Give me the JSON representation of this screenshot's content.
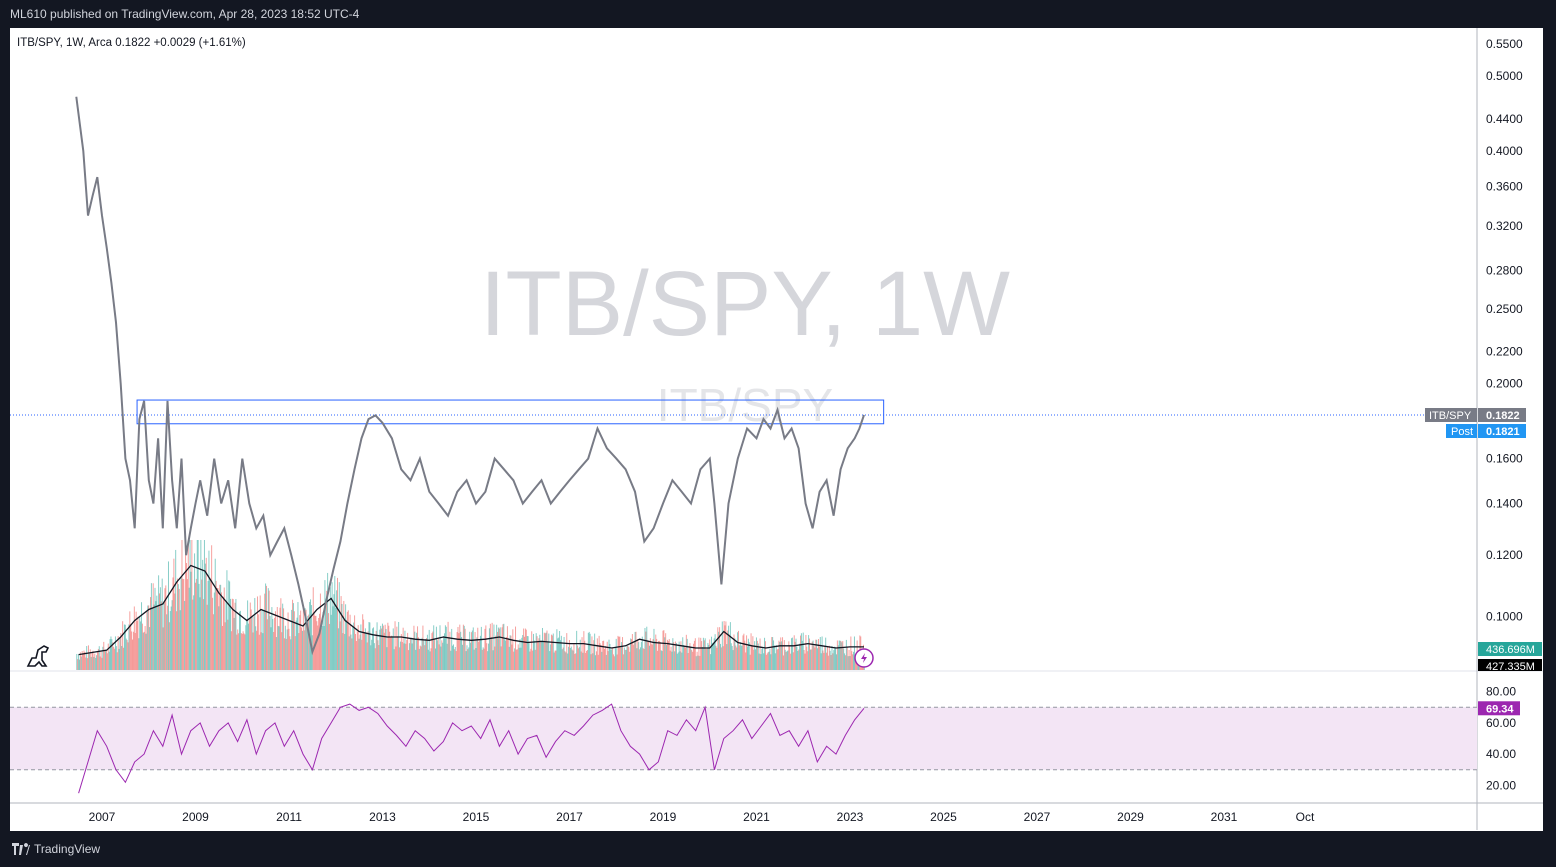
{
  "header": {
    "published": "ML610 published on TradingView.com, Apr 28, 2023 18:52 UTC-4"
  },
  "legend": {
    "symbol": "ITB/SPY, 1W, Arca",
    "last": "0.1822",
    "change": "+0.0029 (+1.61%)"
  },
  "watermark": {
    "main": "ITB/SPY, 1W",
    "secondary": "ITB/SPY"
  },
  "footer": {
    "brand": "TradingView"
  },
  "chart_data": {
    "type": "line",
    "scale": "log",
    "x_axis_labels": [
      "2007",
      "2009",
      "2011",
      "2013",
      "2015",
      "2017",
      "2019",
      "2021",
      "2023",
      "2025",
      "2027",
      "2029",
      "2031",
      "Oct"
    ],
    "price_axis_labels": [
      "0.5500",
      "0.5000",
      "0.4400",
      "0.4000",
      "0.3600",
      "0.3200",
      "0.2800",
      "0.2500",
      "0.2200",
      "0.2000",
      "0.1600",
      "0.1400",
      "0.1200",
      "0.1000",
      "0.0900"
    ],
    "price_ylim": [
      0.085,
      0.56
    ],
    "price_series": {
      "name": "ITB/SPY",
      "x": [
        2006.45,
        2006.6,
        2006.7,
        2006.8,
        2006.9,
        2007.0,
        2007.1,
        2007.2,
        2007.3,
        2007.4,
        2007.5,
        2007.6,
        2007.7,
        2007.8,
        2007.9,
        2008.0,
        2008.1,
        2008.2,
        2008.3,
        2008.4,
        2008.5,
        2008.6,
        2008.7,
        2008.8,
        2008.9,
        2009.0,
        2009.1,
        2009.25,
        2009.4,
        2009.55,
        2009.7,
        2009.85,
        2010.0,
        2010.15,
        2010.3,
        2010.45,
        2010.6,
        2010.75,
        2010.9,
        2011.05,
        2011.2,
        2011.35,
        2011.5,
        2011.65,
        2011.8,
        2011.95,
        2012.1,
        2012.25,
        2012.4,
        2012.55,
        2012.7,
        2012.85,
        2013.0,
        2013.2,
        2013.4,
        2013.6,
        2013.8,
        2014.0,
        2014.2,
        2014.4,
        2014.6,
        2014.8,
        2015.0,
        2015.2,
        2015.4,
        2015.6,
        2015.8,
        2016.0,
        2016.2,
        2016.4,
        2016.6,
        2016.8,
        2017.0,
        2017.2,
        2017.4,
        2017.6,
        2017.8,
        2018.0,
        2018.2,
        2018.4,
        2018.6,
        2018.8,
        2019.0,
        2019.2,
        2019.4,
        2019.6,
        2019.8,
        2020.0,
        2020.1,
        2020.25,
        2020.4,
        2020.6,
        2020.8,
        2021.0,
        2021.15,
        2021.3,
        2021.45,
        2021.6,
        2021.75,
        2021.9,
        2022.05,
        2022.2,
        2022.35,
        2022.5,
        2022.65,
        2022.8,
        2022.95,
        2023.1,
        2023.2,
        2023.3
      ],
      "y": [
        0.47,
        0.4,
        0.33,
        0.35,
        0.37,
        0.33,
        0.3,
        0.27,
        0.24,
        0.2,
        0.16,
        0.15,
        0.13,
        0.18,
        0.19,
        0.15,
        0.14,
        0.17,
        0.13,
        0.19,
        0.15,
        0.13,
        0.16,
        0.12,
        0.13,
        0.14,
        0.15,
        0.135,
        0.16,
        0.14,
        0.15,
        0.13,
        0.16,
        0.14,
        0.13,
        0.135,
        0.12,
        0.125,
        0.13,
        0.12,
        0.11,
        0.1,
        0.09,
        0.095,
        0.105,
        0.115,
        0.125,
        0.14,
        0.155,
        0.17,
        0.18,
        0.182,
        0.178,
        0.17,
        0.155,
        0.15,
        0.16,
        0.145,
        0.14,
        0.135,
        0.145,
        0.15,
        0.14,
        0.145,
        0.16,
        0.155,
        0.15,
        0.14,
        0.145,
        0.15,
        0.14,
        0.145,
        0.15,
        0.155,
        0.16,
        0.175,
        0.165,
        0.16,
        0.155,
        0.145,
        0.125,
        0.13,
        0.14,
        0.15,
        0.145,
        0.14,
        0.155,
        0.16,
        0.14,
        0.11,
        0.14,
        0.16,
        0.175,
        0.17,
        0.18,
        0.175,
        0.185,
        0.17,
        0.175,
        0.165,
        0.14,
        0.13,
        0.145,
        0.15,
        0.135,
        0.155,
        0.165,
        0.17,
        0.175,
        0.1822
      ]
    },
    "price_label": {
      "symbol": "ITB/SPY",
      "value": "0.1822"
    },
    "post_label": {
      "text": "Post",
      "value": "0.1821"
    },
    "volume_labels": {
      "upper": "436.696M",
      "lower": "427.335M"
    },
    "rsi_axis_labels": [
      "80.00",
      "60.00",
      "40.00",
      "20.00"
    ],
    "rsi_ylim": [
      10,
      90
    ],
    "rsi_band": [
      70,
      30
    ],
    "rsi_value": "69.34",
    "rsi_series": {
      "x": [
        2006.5,
        2006.7,
        2006.9,
        2007.1,
        2007.3,
        2007.5,
        2007.7,
        2007.9,
        2008.1,
        2008.3,
        2008.5,
        2008.7,
        2008.9,
        2009.1,
        2009.3,
        2009.5,
        2009.7,
        2009.9,
        2010.1,
        2010.3,
        2010.5,
        2010.7,
        2010.9,
        2011.1,
        2011.3,
        2011.5,
        2011.7,
        2011.9,
        2012.1,
        2012.3,
        2012.5,
        2012.7,
        2012.9,
        2013.1,
        2013.3,
        2013.5,
        2013.7,
        2013.9,
        2014.1,
        2014.3,
        2014.5,
        2014.7,
        2014.9,
        2015.1,
        2015.3,
        2015.5,
        2015.7,
        2015.9,
        2016.1,
        2016.3,
        2016.5,
        2016.7,
        2016.9,
        2017.1,
        2017.3,
        2017.5,
        2017.7,
        2017.9,
        2018.1,
        2018.3,
        2018.5,
        2018.7,
        2018.9,
        2019.1,
        2019.3,
        2019.5,
        2019.7,
        2019.9,
        2020.1,
        2020.3,
        2020.5,
        2020.7,
        2020.9,
        2021.1,
        2021.3,
        2021.5,
        2021.7,
        2021.9,
        2022.1,
        2022.3,
        2022.5,
        2022.7,
        2022.9,
        2023.1,
        2023.3
      ],
      "y": [
        15,
        35,
        55,
        45,
        30,
        22,
        35,
        40,
        55,
        45,
        65,
        40,
        55,
        60,
        45,
        55,
        60,
        48,
        62,
        40,
        55,
        60,
        45,
        55,
        40,
        30,
        50,
        60,
        70,
        72,
        68,
        70,
        66,
        58,
        52,
        45,
        55,
        50,
        42,
        48,
        60,
        55,
        58,
        50,
        62,
        45,
        55,
        40,
        50,
        52,
        38,
        48,
        55,
        52,
        58,
        65,
        68,
        72,
        55,
        45,
        40,
        30,
        35,
        55,
        52,
        62,
        55,
        70,
        30,
        50,
        55,
        62,
        50,
        58,
        66,
        52,
        55,
        45,
        55,
        35,
        45,
        40,
        52,
        62,
        69.34
      ]
    },
    "volume_series": {
      "x": [
        2006.5,
        2006.8,
        2007.1,
        2007.4,
        2007.7,
        2008.0,
        2008.3,
        2008.6,
        2008.9,
        2009.2,
        2009.5,
        2009.8,
        2010.1,
        2010.4,
        2010.7,
        2011.0,
        2011.3,
        2011.6,
        2011.9,
        2012.2,
        2012.5,
        2012.8,
        2013.1,
        2013.4,
        2013.7,
        2014.0,
        2014.3,
        2014.6,
        2014.9,
        2015.2,
        2015.5,
        2015.8,
        2016.1,
        2016.4,
        2016.7,
        2017.0,
        2017.3,
        2017.6,
        2017.9,
        2018.2,
        2018.5,
        2018.8,
        2019.1,
        2019.4,
        2019.7,
        2020.0,
        2020.3,
        2020.6,
        2020.9,
        2021.2,
        2021.5,
        2021.8,
        2022.1,
        2022.4,
        2022.7,
        2023.0,
        2023.3
      ],
      "avg": [
        0.14,
        0.16,
        0.18,
        0.3,
        0.45,
        0.55,
        0.6,
        0.8,
        0.95,
        0.9,
        0.7,
        0.55,
        0.45,
        0.55,
        0.5,
        0.45,
        0.4,
        0.55,
        0.65,
        0.45,
        0.35,
        0.32,
        0.3,
        0.3,
        0.28,
        0.27,
        0.3,
        0.28,
        0.27,
        0.28,
        0.3,
        0.27,
        0.25,
        0.26,
        0.25,
        0.24,
        0.24,
        0.22,
        0.2,
        0.22,
        0.28,
        0.25,
        0.24,
        0.22,
        0.2,
        0.2,
        0.35,
        0.25,
        0.22,
        0.2,
        0.22,
        0.22,
        0.24,
        0.22,
        0.2,
        0.21,
        0.21
      ]
    }
  },
  "colors": {
    "background": "#131722",
    "pane": "#ffffff",
    "price_line": "#787b86",
    "rsi_line": "#9c27b0",
    "rsi_band": "#f3e5f5",
    "vol_up": "#26a69a",
    "vol_down": "#ef5350",
    "accent_blue": "#2962ff",
    "post_blue": "#2196f3",
    "rsi_badge": "#9c27b0",
    "vol_badge": "#26a69a"
  }
}
